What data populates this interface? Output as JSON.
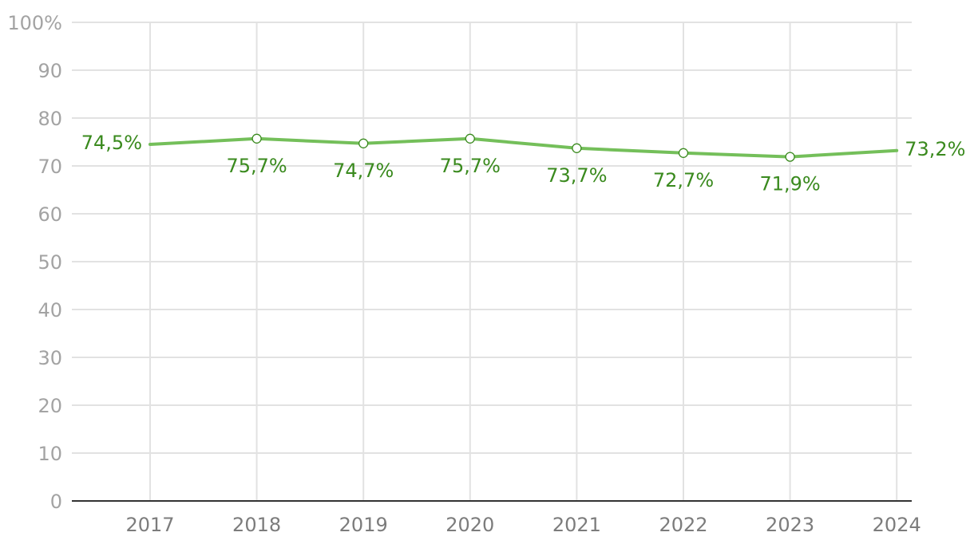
{
  "chart_data": {
    "type": "line",
    "title": "",
    "xlabel": "",
    "ylabel": "",
    "categories": [
      "2017",
      "2018",
      "2019",
      "2020",
      "2021",
      "2022",
      "2023",
      "2024"
    ],
    "series": [
      {
        "values": [
          74.5,
          75.7,
          74.7,
          75.7,
          73.7,
          72.7,
          71.9,
          73.2
        ],
        "labels": [
          "74,5%",
          "75,7%",
          "74,7%",
          "75,7%",
          "73,7%",
          "72,7%",
          "71,9%",
          "73,2%"
        ],
        "color": "#74bf5a",
        "label_color": "#3a8a1e",
        "markers": "hollow-circle on interior points"
      }
    ],
    "ylim": [
      0,
      100
    ],
    "yticks": [
      0,
      10,
      20,
      30,
      40,
      50,
      60,
      70,
      80,
      90,
      100
    ],
    "ytick_labels": [
      "0",
      "10",
      "20",
      "30",
      "40",
      "50",
      "60",
      "70",
      "80",
      "90",
      "100%"
    ],
    "grid": true,
    "legend": "none"
  }
}
